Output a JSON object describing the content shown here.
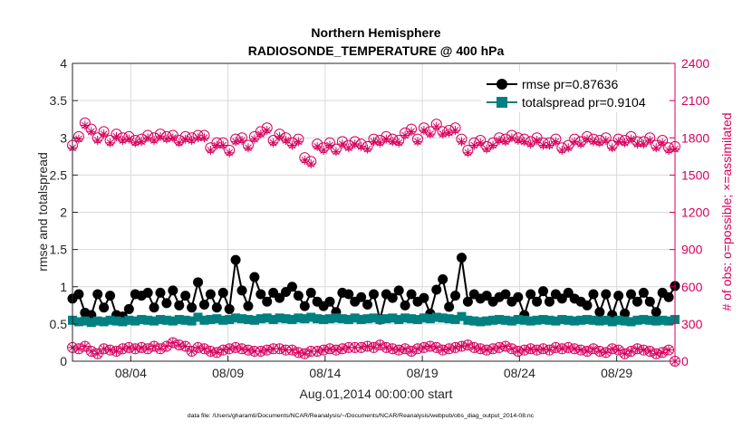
{
  "colors": {
    "rmse": "#000000",
    "totalspread": "#008080",
    "obs": "#d6005d",
    "axis": "#262626",
    "grid": "#d9d9d9"
  },
  "chart_data": {
    "type": "line",
    "title_line1": "Northern Hemisphere",
    "title_line2": "RADIOSONDE_TEMPERATURE @ 400 hPa",
    "xlabel": "Aug.01,2014 00:00:00 start",
    "ylabel_left": "rmse and totalspread",
    "ylabel_right": "# of obs: o=possible; ×=assimilated",
    "footnote": "data file: /Users/gharamti/Documents/NCAR/Reanalysis/~/Documents/NCAR/Reanalysis/webpub/obs_diag_output_2014-08.nc",
    "x_tick_labels": [
      "08/04",
      "08/09",
      "08/14",
      "08/19",
      "08/24",
      "08/29"
    ],
    "x_tick_days": [
      4,
      9,
      14,
      19,
      24,
      29
    ],
    "xlim": [
      1,
      32
    ],
    "ylim_left": [
      0,
      4
    ],
    "y_ticks_left": [
      "0",
      "0.5",
      "1",
      "1.5",
      "2",
      "2.5",
      "3",
      "3.5",
      "4"
    ],
    "ylim_right": [
      0,
      2400
    ],
    "y_ticks_right": [
      "0",
      "300",
      "600",
      "900",
      "1200",
      "1500",
      "1800",
      "2100",
      "2400"
    ],
    "legend": [
      {
        "name": "rmse pr=0.87636",
        "key": "rmse"
      },
      {
        "name": "totalspread pr=0.9104",
        "key": "totalspread"
      }
    ],
    "series": [
      {
        "name": "rmse",
        "values": [
          0.84,
          0.9,
          0.65,
          0.62,
          0.9,
          0.72,
          0.88,
          0.62,
          0.6,
          0.7,
          0.9,
          0.88,
          0.92,
          0.72,
          0.92,
          0.78,
          0.95,
          0.75,
          0.88,
          0.72,
          1.06,
          0.76,
          0.9,
          0.72,
          0.92,
          0.7,
          1.36,
          0.95,
          0.74,
          1.13,
          0.9,
          0.8,
          0.92,
          0.85,
          0.93,
          1.0,
          0.88,
          0.74,
          0.92,
          0.8,
          0.74,
          0.8,
          0.66,
          0.92,
          0.9,
          0.8,
          0.86,
          0.76,
          0.9,
          0.56,
          0.9,
          0.85,
          0.95,
          0.75,
          0.9,
          0.8,
          0.85,
          0.64,
          0.96,
          1.1,
          0.73,
          0.88,
          1.39,
          0.8,
          0.9,
          0.84,
          0.88,
          0.8,
          0.86,
          0.9,
          0.8,
          0.86,
          0.62,
          0.9,
          0.8,
          0.94,
          0.8,
          0.9,
          0.84,
          0.92,
          0.84,
          0.8,
          0.75,
          0.9,
          0.66,
          0.9,
          0.62,
          0.88,
          0.64,
          0.9,
          0.8,
          0.92,
          0.8,
          0.66,
          0.92,
          0.86,
          1.01
        ]
      },
      {
        "name": "totalspread",
        "values": [
          0.55,
          0.53,
          0.54,
          0.52,
          0.54,
          0.53,
          0.55,
          0.54,
          0.53,
          0.55,
          0.54,
          0.56,
          0.55,
          0.54,
          0.56,
          0.55,
          0.54,
          0.56,
          0.55,
          0.54,
          0.59,
          0.55,
          0.56,
          0.57,
          0.55,
          0.56,
          0.58,
          0.57,
          0.56,
          0.55,
          0.57,
          0.58,
          0.56,
          0.58,
          0.57,
          0.56,
          0.58,
          0.57,
          0.59,
          0.57,
          0.56,
          0.57,
          0.58,
          0.57,
          0.56,
          0.58,
          0.56,
          0.57,
          0.58,
          0.56,
          0.57,
          0.58,
          0.56,
          0.58,
          0.57,
          0.56,
          0.58,
          0.57,
          0.59,
          0.58,
          0.57,
          0.56,
          0.6,
          0.55,
          0.54,
          0.53,
          0.54,
          0.55,
          0.56,
          0.55,
          0.54,
          0.56,
          0.55,
          0.54,
          0.55,
          0.56,
          0.55,
          0.54,
          0.56,
          0.55,
          0.54,
          0.55,
          0.56,
          0.55,
          0.54,
          0.55,
          0.53,
          0.55,
          0.54,
          0.53,
          0.55,
          0.56,
          0.55,
          0.54,
          0.55,
          0.54,
          0.56
        ]
      },
      {
        "name": "possible",
        "values": [
          1740,
          1810,
          1920,
          1870,
          1800,
          1850,
          1780,
          1830,
          1800,
          1810,
          1780,
          1790,
          1820,
          1800,
          1830,
          1810,
          1820,
          1780,
          1810,
          1800,
          1820,
          1820,
          1720,
          1760,
          1760,
          1700,
          1790,
          1800,
          1740,
          1810,
          1850,
          1880,
          1780,
          1830,
          1800,
          1760,
          1790,
          1640,
          1610,
          1750,
          1720,
          1760,
          1710,
          1770,
          1740,
          1770,
          1750,
          1730,
          1790,
          1780,
          1810,
          1790,
          1780,
          1840,
          1870,
          1790,
          1880,
          1850,
          1910,
          1850,
          1860,
          1880,
          1790,
          1700,
          1760,
          1780,
          1730,
          1760,
          1800,
          1790,
          1820,
          1800,
          1790,
          1770,
          1800,
          1760,
          1760,
          1790,
          1720,
          1740,
          1790,
          1770,
          1810,
          1790,
          1780,
          1800,
          1740,
          1790,
          1780,
          1810,
          1770,
          1770,
          1800,
          1740,
          1780,
          1720,
          1730
        ]
      },
      {
        "name": "assimilated",
        "values": [
          1720,
          1790,
          1900,
          1850,
          1780,
          1830,
          1760,
          1810,
          1780,
          1790,
          1760,
          1770,
          1800,
          1780,
          1810,
          1790,
          1800,
          1760,
          1790,
          1780,
          1800,
          1800,
          1700,
          1740,
          1740,
          1680,
          1770,
          1780,
          1720,
          1790,
          1830,
          1860,
          1760,
          1810,
          1780,
          1740,
          1770,
          1620,
          1590,
          1730,
          1700,
          1740,
          1690,
          1750,
          1720,
          1750,
          1730,
          1710,
          1770,
          1760,
          1790,
          1770,
          1760,
          1820,
          1850,
          1770,
          1860,
          1830,
          1890,
          1830,
          1840,
          1860,
          1770,
          1680,
          1740,
          1760,
          1710,
          1740,
          1780,
          1770,
          1800,
          1780,
          1770,
          1750,
          1780,
          1740,
          1740,
          1770,
          1700,
          1720,
          1770,
          1750,
          1790,
          1770,
          1760,
          1780,
          1720,
          1770,
          1760,
          1790,
          1750,
          1750,
          1780,
          1720,
          1760,
          1700,
          1710
        ]
      },
      {
        "name": "possible_low",
        "values": [
          110,
          100,
          120,
          80,
          60,
          100,
          90,
          80,
          100,
          110,
          100,
          110,
          100,
          120,
          100,
          120,
          150,
          130,
          120,
          80,
          110,
          100,
          80,
          70,
          90,
          100,
          110,
          100,
          90,
          80,
          80,
          90,
          100,
          100,
          90,
          90,
          70,
          60,
          80,
          80,
          90,
          100,
          90,
          100,
          110,
          110,
          110,
          120,
          110,
          130,
          110,
          100,
          90,
          100,
          80,
          100,
          110,
          120,
          110,
          90,
          100,
          110,
          120,
          130,
          110,
          100,
          90,
          100,
          110,
          120,
          100,
          80,
          90,
          100,
          90,
          100,
          90,
          110,
          100,
          110,
          100,
          90,
          80,
          100,
          80,
          70,
          100,
          90,
          60,
          80,
          100,
          90,
          80,
          60,
          70,
          90,
          0
        ]
      }
    ]
  }
}
